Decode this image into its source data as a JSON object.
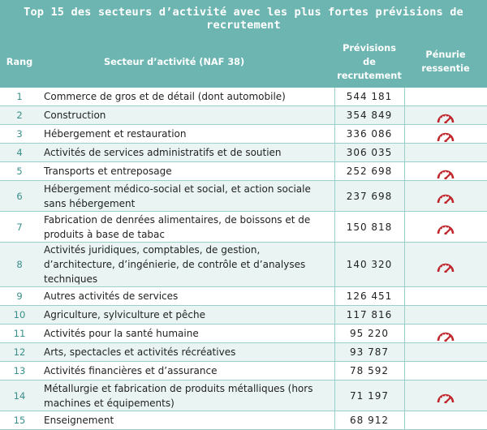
{
  "title": "Top 15 des secteurs d’activité avec les plus fortes prévisions de recrutement",
  "headers": {
    "rang": "Rang",
    "secteur": "Secteur d’activité (NAF 38)",
    "previsions": [
      "Prévisions",
      "de",
      "recrutement"
    ],
    "penurie": [
      "Pénurie",
      "ressentie"
    ]
  },
  "rows": [
    {
      "rank": "1",
      "sector": "Commerce de gros et de détail (dont automobile)",
      "value": "544 181",
      "shortage": false
    },
    {
      "rank": "2",
      "sector": "Construction",
      "value": "354 849",
      "shortage": true
    },
    {
      "rank": "3",
      "sector": "Hébergement et restauration",
      "value": "336 086",
      "shortage": true
    },
    {
      "rank": "4",
      "sector": "Activités de services administratifs et de soutien",
      "value": "306 035",
      "shortage": false
    },
    {
      "rank": "5",
      "sector": "Transports et entreposage",
      "value": "252 698",
      "shortage": true
    },
    {
      "rank": "6",
      "sector": "Hébergement médico-social et social, et action sociale sans hébergement",
      "value": "237 698",
      "shortage": true
    },
    {
      "rank": "7",
      "sector": "Fabrication de denrées alimentaires, de boissons et de produits à base de tabac",
      "value": "150 818",
      "shortage": true
    },
    {
      "rank": "8",
      "sector": "Activités juridiques, comptables, de gestion, d’architecture, d’ingénierie, de contrôle et d’analyses techniques",
      "value": "140 320",
      "shortage": true
    },
    {
      "rank": "9",
      "sector": "Autres activités de services",
      "value": "126 451",
      "shortage": false
    },
    {
      "rank": "10",
      "sector": "Agriculture, sylviculture et pêche",
      "value": "117 816",
      "shortage": false
    },
    {
      "rank": "11",
      "sector": "Activités pour la santé humaine",
      "value": "95 220",
      "shortage": true
    },
    {
      "rank": "12",
      "sector": "Arts, spectacles et activités récréatives",
      "value": "93 787",
      "shortage": false
    },
    {
      "rank": "13",
      "sector": "Activités financières et d’assurance",
      "value": "78 592",
      "shortage": false
    },
    {
      "rank": "14",
      "sector": "Métallurgie et fabrication de produits métalliques (hors machines et équipements)",
      "value": "71 197",
      "shortage": true
    },
    {
      "rank": "15",
      "sector": "Enseignement",
      "value": "68 912",
      "shortage": false
    }
  ],
  "colors": {
    "header": "#6db5b1",
    "alt_row": "#e9f4f3",
    "gauge": "#c0262c"
  },
  "icons": {
    "shortage": "gauge-icon"
  }
}
